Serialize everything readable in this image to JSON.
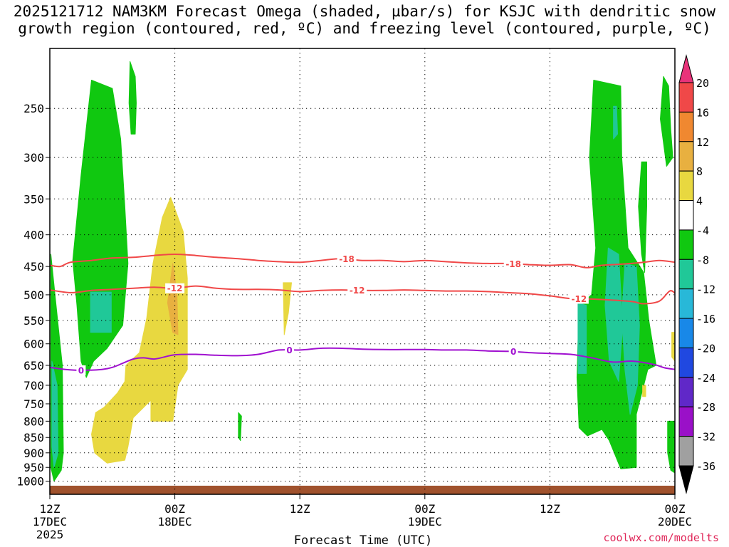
{
  "title_line1": "2025121712 NAM3KM Forecast Omega (shaded, µbar/s) for KSJC with dendritic snow",
  "title_line2": "growth region (contoured, red, ºC) and freezing level (contoured, purple, ºC)",
  "xlabel": "Forecast Time (UTC)",
  "credit": "coolwx.com/modelts",
  "chart_data": {
    "type": "heatmap",
    "subtype": "time-pressure cross section",
    "x_unit": "hours from 2025121712",
    "x_range": [
      0,
      60
    ],
    "x_ticks": [
      {
        "h": 0,
        "line1": "12Z",
        "line2": "17DEC",
        "line3": "2025"
      },
      {
        "h": 12,
        "line1": "00Z",
        "line2": "18DEC",
        "line3": ""
      },
      {
        "h": 24,
        "line1": "12Z",
        "line2": "",
        "line3": ""
      },
      {
        "h": 36,
        "line1": "00Z",
        "line2": "19DEC",
        "line3": ""
      },
      {
        "h": 48,
        "line1": "12Z",
        "line2": "",
        "line3": ""
      },
      {
        "h": 60,
        "line1": "00Z",
        "line2": "20DEC",
        "line3": ""
      }
    ],
    "y_unit": "hPa",
    "y_scale": "log",
    "y_range": [
      1050,
      200
    ],
    "y_ticks": [
      250,
      300,
      350,
      400,
      450,
      500,
      550,
      600,
      650,
      700,
      750,
      800,
      850,
      900,
      950,
      1000
    ],
    "grid": true,
    "colorbar": {
      "labels": [
        20,
        16,
        12,
        8,
        4,
        -4,
        -8,
        -12,
        -16,
        -20,
        -24,
        -28,
        -32,
        -36
      ],
      "colors_top_to_bottom": [
        "#e8337a",
        "#f04848",
        "#f08830",
        "#e8b040",
        "#e8d840",
        "#ffffff",
        "#10c810",
        "#20c898",
        "#28b8d8",
        "#1888e8",
        "#2048e0",
        "#6028c8",
        "#9a10c8",
        "#a0a0a0",
        "#000000"
      ]
    },
    "omega_areas": [
      {
        "value": -8,
        "color": "#10c810",
        "points": [
          [
            4,
            225
          ],
          [
            6,
            232
          ],
          [
            6.8,
            280
          ],
          [
            7.2,
            360
          ],
          [
            7.5,
            445
          ],
          [
            7,
            560
          ],
          [
            5.5,
            610
          ],
          [
            4.2,
            640
          ],
          [
            3.5,
            680
          ],
          [
            3,
            640
          ],
          [
            2.6,
            520
          ],
          [
            2.2,
            440
          ],
          [
            3,
            320
          ]
        ]
      },
      {
        "value": -8,
        "color": "#10c810",
        "points": [
          [
            7.7,
            210
          ],
          [
            8.2,
            222
          ],
          [
            8.3,
            245
          ],
          [
            8.2,
            275
          ],
          [
            7.8,
            275
          ],
          [
            7.6,
            245
          ]
        ]
      },
      {
        "value": -12,
        "color": "#20c898",
        "points": [
          [
            3.9,
            495
          ],
          [
            5.9,
            495
          ],
          [
            5.9,
            575
          ],
          [
            3.9,
            575
          ]
        ]
      },
      {
        "value": -8,
        "color": "#10c810",
        "points": [
          [
            0.1,
            430
          ],
          [
            0.6,
            520
          ],
          [
            1.2,
            650
          ],
          [
            1.3,
            900
          ],
          [
            1.1,
            960
          ],
          [
            0.4,
            1000
          ],
          [
            0.1,
            950
          ]
        ]
      },
      {
        "value": -12,
        "color": "#20c898",
        "points": [
          [
            0.2,
            640
          ],
          [
            0.7,
            700
          ],
          [
            0.8,
            900
          ],
          [
            0.4,
            950
          ],
          [
            0.2,
            880
          ]
        ]
      },
      {
        "value": 4,
        "color": "#e8d840",
        "points": [
          [
            11.6,
            348
          ],
          [
            12.8,
            395
          ],
          [
            13.2,
            470
          ],
          [
            13.2,
            660
          ],
          [
            12.3,
            700
          ],
          [
            11.8,
            800
          ],
          [
            9.7,
            800
          ],
          [
            9.7,
            740
          ],
          [
            8,
            790
          ],
          [
            7.5,
            880
          ],
          [
            7.2,
            925
          ],
          [
            5.5,
            935
          ],
          [
            4.3,
            900
          ],
          [
            4,
            840
          ],
          [
            4.4,
            775
          ],
          [
            5.2,
            760
          ],
          [
            6.5,
            720
          ],
          [
            7.2,
            690
          ],
          [
            7.3,
            650
          ],
          [
            8.6,
            620
          ],
          [
            9.3,
            545
          ],
          [
            9.9,
            445
          ],
          [
            10.8,
            375
          ]
        ]
      },
      {
        "value": 8,
        "color": "#e8b040",
        "points": [
          [
            11.8,
            445
          ],
          [
            12.2,
            495
          ],
          [
            12.3,
            580
          ],
          [
            11.8,
            575
          ],
          [
            11.3,
            515
          ]
        ]
      },
      {
        "value": 4,
        "color": "#e8d840",
        "points": [
          [
            22.4,
            478
          ],
          [
            23.2,
            478
          ],
          [
            22.9,
            535
          ],
          [
            22.5,
            580
          ]
        ]
      },
      {
        "value": -8,
        "color": "#10c810",
        "points": [
          [
            18.1,
            775
          ],
          [
            18.4,
            785
          ],
          [
            18.3,
            860
          ],
          [
            18.1,
            850
          ]
        ]
      },
      {
        "value": -8,
        "color": "#10c810",
        "points": [
          [
            52.2,
            225
          ],
          [
            54.8,
            230
          ],
          [
            54.9,
            300
          ],
          [
            55.5,
            420
          ],
          [
            57,
            460
          ],
          [
            57.5,
            550
          ],
          [
            58.2,
            650
          ],
          [
            57.4,
            660
          ],
          [
            56.3,
            780
          ],
          [
            56.3,
            950
          ],
          [
            54.8,
            955
          ],
          [
            53.7,
            860
          ],
          [
            53,
            825
          ],
          [
            51.6,
            845
          ],
          [
            50.8,
            820
          ],
          [
            50.6,
            680
          ],
          [
            50.8,
            520
          ],
          [
            52,
            500
          ],
          [
            52.4,
            420
          ],
          [
            51.8,
            300
          ]
        ]
      },
      {
        "value": -8,
        "color": "#10c810",
        "points": [
          [
            58.9,
            222
          ],
          [
            59.4,
            230
          ],
          [
            59.6,
            270
          ],
          [
            59.8,
            300
          ],
          [
            59.2,
            310
          ],
          [
            58.6,
            260
          ]
        ]
      },
      {
        "value": -8,
        "color": "#10c810",
        "points": [
          [
            56.8,
            305
          ],
          [
            57.3,
            305
          ],
          [
            57.3,
            360
          ],
          [
            57.1,
            460
          ],
          [
            56.8,
            430
          ],
          [
            56.5,
            360
          ]
        ]
      },
      {
        "value": -8,
        "color": "#10c810",
        "points": [
          [
            59.3,
            800
          ],
          [
            60,
            800
          ],
          [
            60,
            970
          ],
          [
            59.6,
            960
          ],
          [
            59.3,
            900
          ]
        ]
      },
      {
        "value": -12,
        "color": "#20c898",
        "points": [
          [
            53.6,
            420
          ],
          [
            54.6,
            430
          ],
          [
            55,
            560
          ],
          [
            54.6,
            690
          ],
          [
            53.7,
            640
          ],
          [
            53.3,
            520
          ]
        ]
      },
      {
        "value": -12,
        "color": "#20c898",
        "points": [
          [
            55.2,
            445
          ],
          [
            56.3,
            450
          ],
          [
            56.6,
            560
          ],
          [
            56.4,
            700
          ],
          [
            55.7,
            780
          ],
          [
            55.2,
            660
          ],
          [
            54.9,
            540
          ]
        ]
      },
      {
        "value": -12,
        "color": "#20c898",
        "points": [
          [
            50.7,
            515
          ],
          [
            51.5,
            520
          ],
          [
            51.5,
            670
          ],
          [
            50.7,
            670
          ]
        ]
      },
      {
        "value": -12,
        "color": "#20c898",
        "points": [
          [
            54.1,
            248
          ],
          [
            54.4,
            248
          ],
          [
            54.5,
            275
          ],
          [
            54.1,
            280
          ]
        ]
      },
      {
        "value": 4,
        "color": "#e8d840",
        "points": [
          [
            59.7,
            575
          ],
          [
            60,
            575
          ],
          [
            60,
            640
          ],
          [
            59.7,
            630
          ]
        ]
      },
      {
        "value": 4,
        "color": "#e8d840",
        "points": [
          [
            56.9,
            700
          ],
          [
            57.2,
            700
          ],
          [
            57.2,
            730
          ],
          [
            56.9,
            730
          ]
        ]
      }
    ],
    "contours": [
      {
        "label": "-18",
        "color": "#f04848",
        "label_positions": [
          28.5,
          44.5
        ],
        "points": [
          [
            0,
            448
          ],
          [
            1,
            450
          ],
          [
            2,
            443
          ],
          [
            4,
            440
          ],
          [
            6,
            436
          ],
          [
            8,
            435
          ],
          [
            10,
            432
          ],
          [
            12,
            430
          ],
          [
            14,
            432
          ],
          [
            16,
            435
          ],
          [
            18,
            437
          ],
          [
            20,
            440
          ],
          [
            22,
            442
          ],
          [
            24,
            443
          ],
          [
            26,
            440
          ],
          [
            28,
            437
          ],
          [
            30,
            440
          ],
          [
            32,
            440
          ],
          [
            34,
            442
          ],
          [
            36,
            440
          ],
          [
            38,
            442
          ],
          [
            40,
            444
          ],
          [
            42,
            445
          ],
          [
            44,
            445
          ],
          [
            46,
            447
          ],
          [
            48,
            448
          ],
          [
            50,
            447
          ],
          [
            51.5,
            452
          ],
          [
            53,
            448
          ],
          [
            55,
            446
          ],
          [
            57,
            443
          ],
          [
            58.5,
            440
          ],
          [
            60,
            443
          ]
        ]
      },
      {
        "label": "-12",
        "color": "#f04848",
        "label_positions": [
          12,
          29.5,
          50.8
        ],
        "points": [
          [
            0,
            491
          ],
          [
            2,
            496
          ],
          [
            4,
            492
          ],
          [
            6,
            490
          ],
          [
            8,
            488
          ],
          [
            10,
            486
          ],
          [
            12,
            488
          ],
          [
            14,
            484
          ],
          [
            16,
            488
          ],
          [
            18,
            490
          ],
          [
            20,
            490
          ],
          [
            22,
            491
          ],
          [
            24,
            494
          ],
          [
            26,
            492
          ],
          [
            28,
            491
          ],
          [
            30,
            492
          ],
          [
            32,
            492
          ],
          [
            34,
            491
          ],
          [
            36,
            492
          ],
          [
            38,
            493
          ],
          [
            40,
            493
          ],
          [
            42,
            494
          ],
          [
            44,
            496
          ],
          [
            46,
            498
          ],
          [
            48,
            502
          ],
          [
            50,
            507
          ],
          [
            52,
            508
          ],
          [
            54,
            510
          ],
          [
            56,
            513
          ],
          [
            57,
            517
          ],
          [
            58.5,
            512
          ],
          [
            59.5,
            493
          ],
          [
            60,
            497
          ]
        ]
      },
      {
        "label": "0",
        "color": "#a010d0",
        "label_positions": [
          3,
          23,
          44.5
        ],
        "points": [
          [
            0,
            655
          ],
          [
            1.5,
            660
          ],
          [
            3,
            662
          ],
          [
            5,
            660
          ],
          [
            6,
            655
          ],
          [
            7,
            645
          ],
          [
            8,
            635
          ],
          [
            9,
            632
          ],
          [
            10,
            635
          ],
          [
            11,
            630
          ],
          [
            12,
            625
          ],
          [
            14,
            624
          ],
          [
            16,
            626
          ],
          [
            18,
            627
          ],
          [
            20,
            624
          ],
          [
            22,
            614
          ],
          [
            24,
            614
          ],
          [
            26,
            610
          ],
          [
            28,
            610
          ],
          [
            30,
            612
          ],
          [
            32,
            613
          ],
          [
            34,
            613
          ],
          [
            36,
            613
          ],
          [
            38,
            614
          ],
          [
            40,
            614
          ],
          [
            42,
            616
          ],
          [
            44,
            617
          ],
          [
            46,
            620
          ],
          [
            48,
            622
          ],
          [
            50,
            624
          ],
          [
            52,
            632
          ],
          [
            54,
            642
          ],
          [
            56,
            640
          ],
          [
            58,
            648
          ],
          [
            59,
            656
          ],
          [
            60,
            660
          ]
        ]
      }
    ],
    "surface": {
      "color": "#a0522d",
      "top_hPa": 1017
    }
  }
}
